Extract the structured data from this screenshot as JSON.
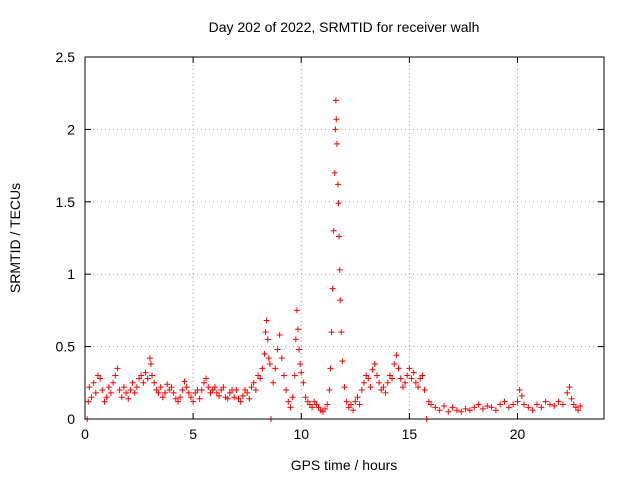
{
  "chart_data": {
    "type": "scatter",
    "title": "Day 202 of 2022, SRMTID for receiver walh",
    "xlabel": "GPS time / hours",
    "ylabel": "SRMTID / TECUs",
    "xlim": [
      0,
      24
    ],
    "ylim": [
      0,
      2.5
    ],
    "xticks": [
      0,
      5,
      10,
      15,
      20
    ],
    "xtick_labels": [
      "0",
      "5",
      "10",
      "15",
      "20"
    ],
    "yticks": [
      0,
      0.5,
      1,
      1.5,
      2,
      2.5
    ],
    "ytick_labels": [
      "0",
      "0.5",
      "1",
      "1.5",
      "2",
      "2.5"
    ],
    "grid": true,
    "marker": "+",
    "series": [
      {
        "name": "SRMTID",
        "color": "#ff0000",
        "points": [
          [
            0.1,
            0.0
          ],
          [
            0.15,
            0.12
          ],
          [
            0.2,
            0.22
          ],
          [
            0.3,
            0.15
          ],
          [
            0.4,
            0.25
          ],
          [
            0.5,
            0.18
          ],
          [
            0.6,
            0.3
          ],
          [
            0.7,
            0.28
          ],
          [
            0.8,
            0.2
          ],
          [
            0.9,
            0.12
          ],
          [
            1.0,
            0.15
          ],
          [
            1.1,
            0.22
          ],
          [
            1.2,
            0.18
          ],
          [
            1.3,
            0.25
          ],
          [
            1.4,
            0.3
          ],
          [
            1.5,
            0.35
          ],
          [
            1.6,
            0.2
          ],
          [
            1.7,
            0.15
          ],
          [
            1.8,
            0.22
          ],
          [
            1.9,
            0.18
          ],
          [
            2.0,
            0.14
          ],
          [
            2.1,
            0.2
          ],
          [
            2.2,
            0.25
          ],
          [
            2.3,
            0.18
          ],
          [
            2.4,
            0.22
          ],
          [
            2.5,
            0.28
          ],
          [
            2.6,
            0.3
          ],
          [
            2.7,
            0.25
          ],
          [
            2.8,
            0.32
          ],
          [
            2.9,
            0.28
          ],
          [
            3.0,
            0.42
          ],
          [
            3.05,
            0.38
          ],
          [
            3.1,
            0.3
          ],
          [
            3.2,
            0.25
          ],
          [
            3.3,
            0.2
          ],
          [
            3.4,
            0.18
          ],
          [
            3.5,
            0.22
          ],
          [
            3.6,
            0.15
          ],
          [
            3.7,
            0.18
          ],
          [
            3.8,
            0.24
          ],
          [
            3.9,
            0.2
          ],
          [
            4.0,
            0.22
          ],
          [
            4.1,
            0.18
          ],
          [
            4.2,
            0.14
          ],
          [
            4.3,
            0.12
          ],
          [
            4.4,
            0.15
          ],
          [
            4.5,
            0.2
          ],
          [
            4.6,
            0.26
          ],
          [
            4.7,
            0.22
          ],
          [
            4.8,
            0.18
          ],
          [
            4.9,
            0.15
          ],
          [
            5.0,
            0.12
          ],
          [
            5.1,
            0.18
          ],
          [
            5.2,
            0.2
          ],
          [
            5.3,
            0.14
          ],
          [
            5.4,
            0.2
          ],
          [
            5.5,
            0.25
          ],
          [
            5.6,
            0.28
          ],
          [
            5.7,
            0.22
          ],
          [
            5.8,
            0.18
          ],
          [
            5.9,
            0.2
          ],
          [
            6.0,
            0.22
          ],
          [
            6.1,
            0.18
          ],
          [
            6.2,
            0.16
          ],
          [
            6.3,
            0.2
          ],
          [
            6.4,
            0.22
          ],
          [
            6.5,
            0.15
          ],
          [
            6.6,
            0.14
          ],
          [
            6.7,
            0.18
          ],
          [
            6.8,
            0.2
          ],
          [
            6.9,
            0.15
          ],
          [
            7.0,
            0.2
          ],
          [
            7.1,
            0.14
          ],
          [
            7.2,
            0.12
          ],
          [
            7.3,
            0.16
          ],
          [
            7.4,
            0.2
          ],
          [
            7.5,
            0.18
          ],
          [
            7.6,
            0.14
          ],
          [
            7.7,
            0.22
          ],
          [
            7.8,
            0.25
          ],
          [
            7.9,
            0.2
          ],
          [
            8.0,
            0.3
          ],
          [
            8.1,
            0.28
          ],
          [
            8.2,
            0.35
          ],
          [
            8.3,
            0.45
          ],
          [
            8.35,
            0.6
          ],
          [
            8.4,
            0.68
          ],
          [
            8.45,
            0.55
          ],
          [
            8.5,
            0.42
          ],
          [
            8.55,
            0.38
          ],
          [
            8.6,
            0.0
          ],
          [
            8.7,
            0.25
          ],
          [
            8.8,
            0.35
          ],
          [
            8.9,
            0.48
          ],
          [
            9.0,
            0.58
          ],
          [
            9.1,
            0.42
          ],
          [
            9.2,
            0.3
          ],
          [
            9.3,
            0.2
          ],
          [
            9.4,
            0.12
          ],
          [
            9.5,
            0.08
          ],
          [
            9.6,
            0.15
          ],
          [
            9.7,
            0.3
          ],
          [
            9.75,
            0.55
          ],
          [
            9.8,
            0.75
          ],
          [
            9.85,
            0.62
          ],
          [
            9.9,
            0.48
          ],
          [
            9.95,
            0.38
          ],
          [
            10.0,
            0.32
          ],
          [
            10.1,
            0.25
          ],
          [
            10.2,
            0.15
          ],
          [
            10.3,
            0.12
          ],
          [
            10.4,
            0.1
          ],
          [
            10.5,
            0.08
          ],
          [
            10.6,
            0.12
          ],
          [
            10.7,
            0.1
          ],
          [
            10.8,
            0.08
          ],
          [
            10.9,
            0.06
          ],
          [
            11.0,
            0.05
          ],
          [
            11.1,
            0.07
          ],
          [
            11.2,
            0.1
          ],
          [
            11.3,
            0.2
          ],
          [
            11.35,
            0.35
          ],
          [
            11.4,
            0.6
          ],
          [
            11.45,
            0.9
          ],
          [
            11.5,
            1.3
          ],
          [
            11.55,
            1.7
          ],
          [
            11.58,
            2.0
          ],
          [
            11.6,
            2.2
          ],
          [
            11.62,
            2.07
          ],
          [
            11.65,
            1.9
          ],
          [
            11.7,
            1.62
          ],
          [
            11.72,
            1.49
          ],
          [
            11.75,
            1.26
          ],
          [
            11.78,
            1.03
          ],
          [
            11.8,
            0.82
          ],
          [
            11.85,
            0.6
          ],
          [
            11.9,
            0.4
          ],
          [
            12.0,
            0.22
          ],
          [
            12.1,
            0.12
          ],
          [
            12.2,
            0.08
          ],
          [
            12.3,
            0.1
          ],
          [
            12.4,
            0.06
          ],
          [
            12.5,
            0.12
          ],
          [
            12.6,
            0.15
          ],
          [
            12.7,
            0.1
          ],
          [
            12.8,
            0.2
          ],
          [
            12.9,
            0.25
          ],
          [
            13.0,
            0.3
          ],
          [
            13.1,
            0.28
          ],
          [
            13.2,
            0.22
          ],
          [
            13.3,
            0.34
          ],
          [
            13.4,
            0.38
          ],
          [
            13.5,
            0.3
          ],
          [
            13.6,
            0.25
          ],
          [
            13.7,
            0.2
          ],
          [
            13.8,
            0.22
          ],
          [
            13.9,
            0.18
          ],
          [
            14.0,
            0.25
          ],
          [
            14.1,
            0.3
          ],
          [
            14.2,
            0.28
          ],
          [
            14.3,
            0.38
          ],
          [
            14.4,
            0.44
          ],
          [
            14.5,
            0.35
          ],
          [
            14.6,
            0.28
          ],
          [
            14.7,
            0.22
          ],
          [
            14.8,
            0.25
          ],
          [
            14.9,
            0.3
          ],
          [
            15.0,
            0.35
          ],
          [
            15.1,
            0.28
          ],
          [
            15.2,
            0.32
          ],
          [
            15.3,
            0.25
          ],
          [
            15.4,
            0.22
          ],
          [
            15.5,
            0.28
          ],
          [
            15.6,
            0.3
          ],
          [
            15.7,
            0.2
          ],
          [
            15.8,
            0.0
          ],
          [
            15.9,
            0.12
          ],
          [
            16.0,
            0.1
          ],
          [
            16.2,
            0.08
          ],
          [
            16.4,
            0.06
          ],
          [
            16.6,
            0.09
          ],
          [
            16.8,
            0.05
          ],
          [
            17.0,
            0.08
          ],
          [
            17.2,
            0.06
          ],
          [
            17.4,
            0.05
          ],
          [
            17.6,
            0.07
          ],
          [
            17.8,
            0.06
          ],
          [
            18.0,
            0.08
          ],
          [
            18.2,
            0.1
          ],
          [
            18.4,
            0.07
          ],
          [
            18.6,
            0.09
          ],
          [
            18.8,
            0.08
          ],
          [
            19.0,
            0.06
          ],
          [
            19.2,
            0.1
          ],
          [
            19.4,
            0.12
          ],
          [
            19.6,
            0.08
          ],
          [
            19.8,
            0.1
          ],
          [
            20.0,
            0.12
          ],
          [
            20.1,
            0.2
          ],
          [
            20.2,
            0.16
          ],
          [
            20.3,
            0.1
          ],
          [
            20.5,
            0.08
          ],
          [
            20.7,
            0.06
          ],
          [
            20.9,
            0.1
          ],
          [
            21.1,
            0.08
          ],
          [
            21.3,
            0.12
          ],
          [
            21.5,
            0.1
          ],
          [
            21.7,
            0.09
          ],
          [
            21.9,
            0.12
          ],
          [
            22.1,
            0.1
          ],
          [
            22.3,
            0.18
          ],
          [
            22.4,
            0.22
          ],
          [
            22.5,
            0.14
          ],
          [
            22.6,
            0.1
          ],
          [
            22.7,
            0.08
          ],
          [
            22.8,
            0.06
          ],
          [
            22.9,
            0.09
          ]
        ]
      }
    ]
  }
}
